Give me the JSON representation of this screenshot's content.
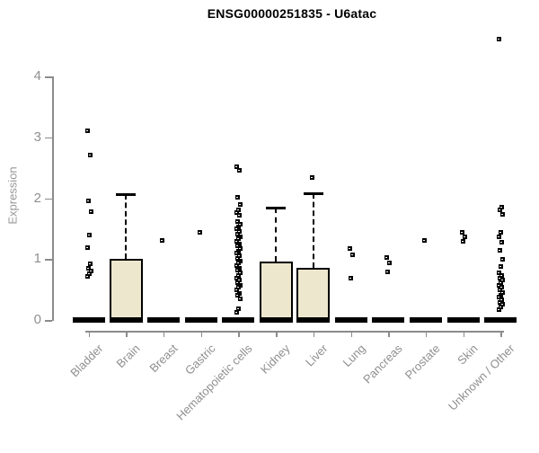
{
  "chart_data": {
    "type": "boxplot",
    "title": "ENSG00000251835 - U6atac",
    "ylabel": "Expression",
    "xlabel": "",
    "ylim": [
      0,
      4.7
    ],
    "yticks": [
      0,
      1,
      2,
      3,
      4
    ],
    "grid": false,
    "legend": "none",
    "categories": [
      "Bladder",
      "Brain",
      "Breast",
      "Gastric",
      "Hematopoietic cells",
      "Kidney",
      "Liver",
      "Lung",
      "Pancreas",
      "Prostate",
      "Skin",
      "Unknown / Other"
    ],
    "series": [
      {
        "category": "Bladder",
        "min": 0,
        "q1": 0,
        "median": 0,
        "q3": 0,
        "whisker_high": 0,
        "outliers": [
          3.12,
          2.71,
          1.96,
          1.79,
          1.4,
          1.2,
          0.93,
          0.86,
          0.81,
          0.77,
          0.73
        ]
      },
      {
        "category": "Brain",
        "min": 0,
        "q1": 0,
        "median": 0,
        "q3": 1.0,
        "whisker_high": 2.07,
        "outliers": []
      },
      {
        "category": "Breast",
        "min": 0,
        "q1": 0,
        "median": 0,
        "q3": 0,
        "whisker_high": 0,
        "outliers": [
          1.31
        ]
      },
      {
        "category": "Gastric",
        "min": 0,
        "q1": 0,
        "median": 0,
        "q3": 0,
        "whisker_high": 0,
        "outliers": [
          1.44
        ]
      },
      {
        "category": "Hematopoietic cells",
        "min": 0,
        "q1": 0,
        "median": 0,
        "q3": 0,
        "whisker_high": 0,
        "outliers": [
          2.52,
          2.46,
          2.02,
          1.9,
          1.82,
          1.77,
          1.72,
          1.62,
          1.58,
          1.54,
          1.5,
          1.46,
          1.42,
          1.38,
          1.34,
          1.3,
          1.26,
          1.22,
          1.18,
          1.14,
          1.1,
          1.06,
          1.02,
          0.98,
          0.94,
          0.9,
          0.86,
          0.82,
          0.78,
          0.74,
          0.7,
          0.66,
          0.62,
          0.58,
          0.54,
          0.5,
          0.45,
          0.41,
          0.36,
          0.19,
          0.13
        ]
      },
      {
        "category": "Kidney",
        "min": 0,
        "q1": 0,
        "median": 0,
        "q3": 0.96,
        "whisker_high": 1.85,
        "outliers": []
      },
      {
        "category": "Liver",
        "min": 0,
        "q1": 0,
        "median": 0,
        "q3": 0.86,
        "whisker_high": 2.08,
        "outliers": [
          2.35
        ]
      },
      {
        "category": "Lung",
        "min": 0,
        "q1": 0,
        "median": 0,
        "q3": 0,
        "whisker_high": 0,
        "outliers": [
          1.18,
          1.08,
          0.7
        ]
      },
      {
        "category": "Pancreas",
        "min": 0,
        "q1": 0,
        "median": 0,
        "q3": 0,
        "whisker_high": 0,
        "outliers": [
          1.04,
          0.95,
          0.8
        ]
      },
      {
        "category": "Prostate",
        "min": 0,
        "q1": 0,
        "median": 0,
        "q3": 0,
        "whisker_high": 0,
        "outliers": [
          1.32
        ]
      },
      {
        "category": "Skin",
        "min": 0,
        "q1": 0,
        "median": 0,
        "q3": 0,
        "whisker_high": 0,
        "outliers": [
          1.44,
          1.37,
          1.3
        ]
      },
      {
        "category": "Unknown / Other",
        "min": 0,
        "q1": 0,
        "median": 0,
        "q3": 0,
        "whisker_high": 0,
        "outliers": [
          4.62,
          1.86,
          1.81,
          1.74,
          1.45,
          1.37,
          1.28,
          1.15,
          1.01,
          0.89,
          0.78,
          0.74,
          0.7,
          0.66,
          0.62,
          0.58,
          0.54,
          0.5,
          0.46,
          0.42,
          0.38,
          0.34,
          0.3,
          0.26,
          0.22,
          0.18
        ]
      }
    ],
    "colors": {
      "box_fill": "#ede7ce",
      "box_border": "#000000",
      "median": "#000000",
      "outlier": "#000000",
      "axis": "#8b8b8b",
      "tick_label": "#8f8f8f",
      "title": "#000000",
      "background": "#ffffff"
    }
  }
}
